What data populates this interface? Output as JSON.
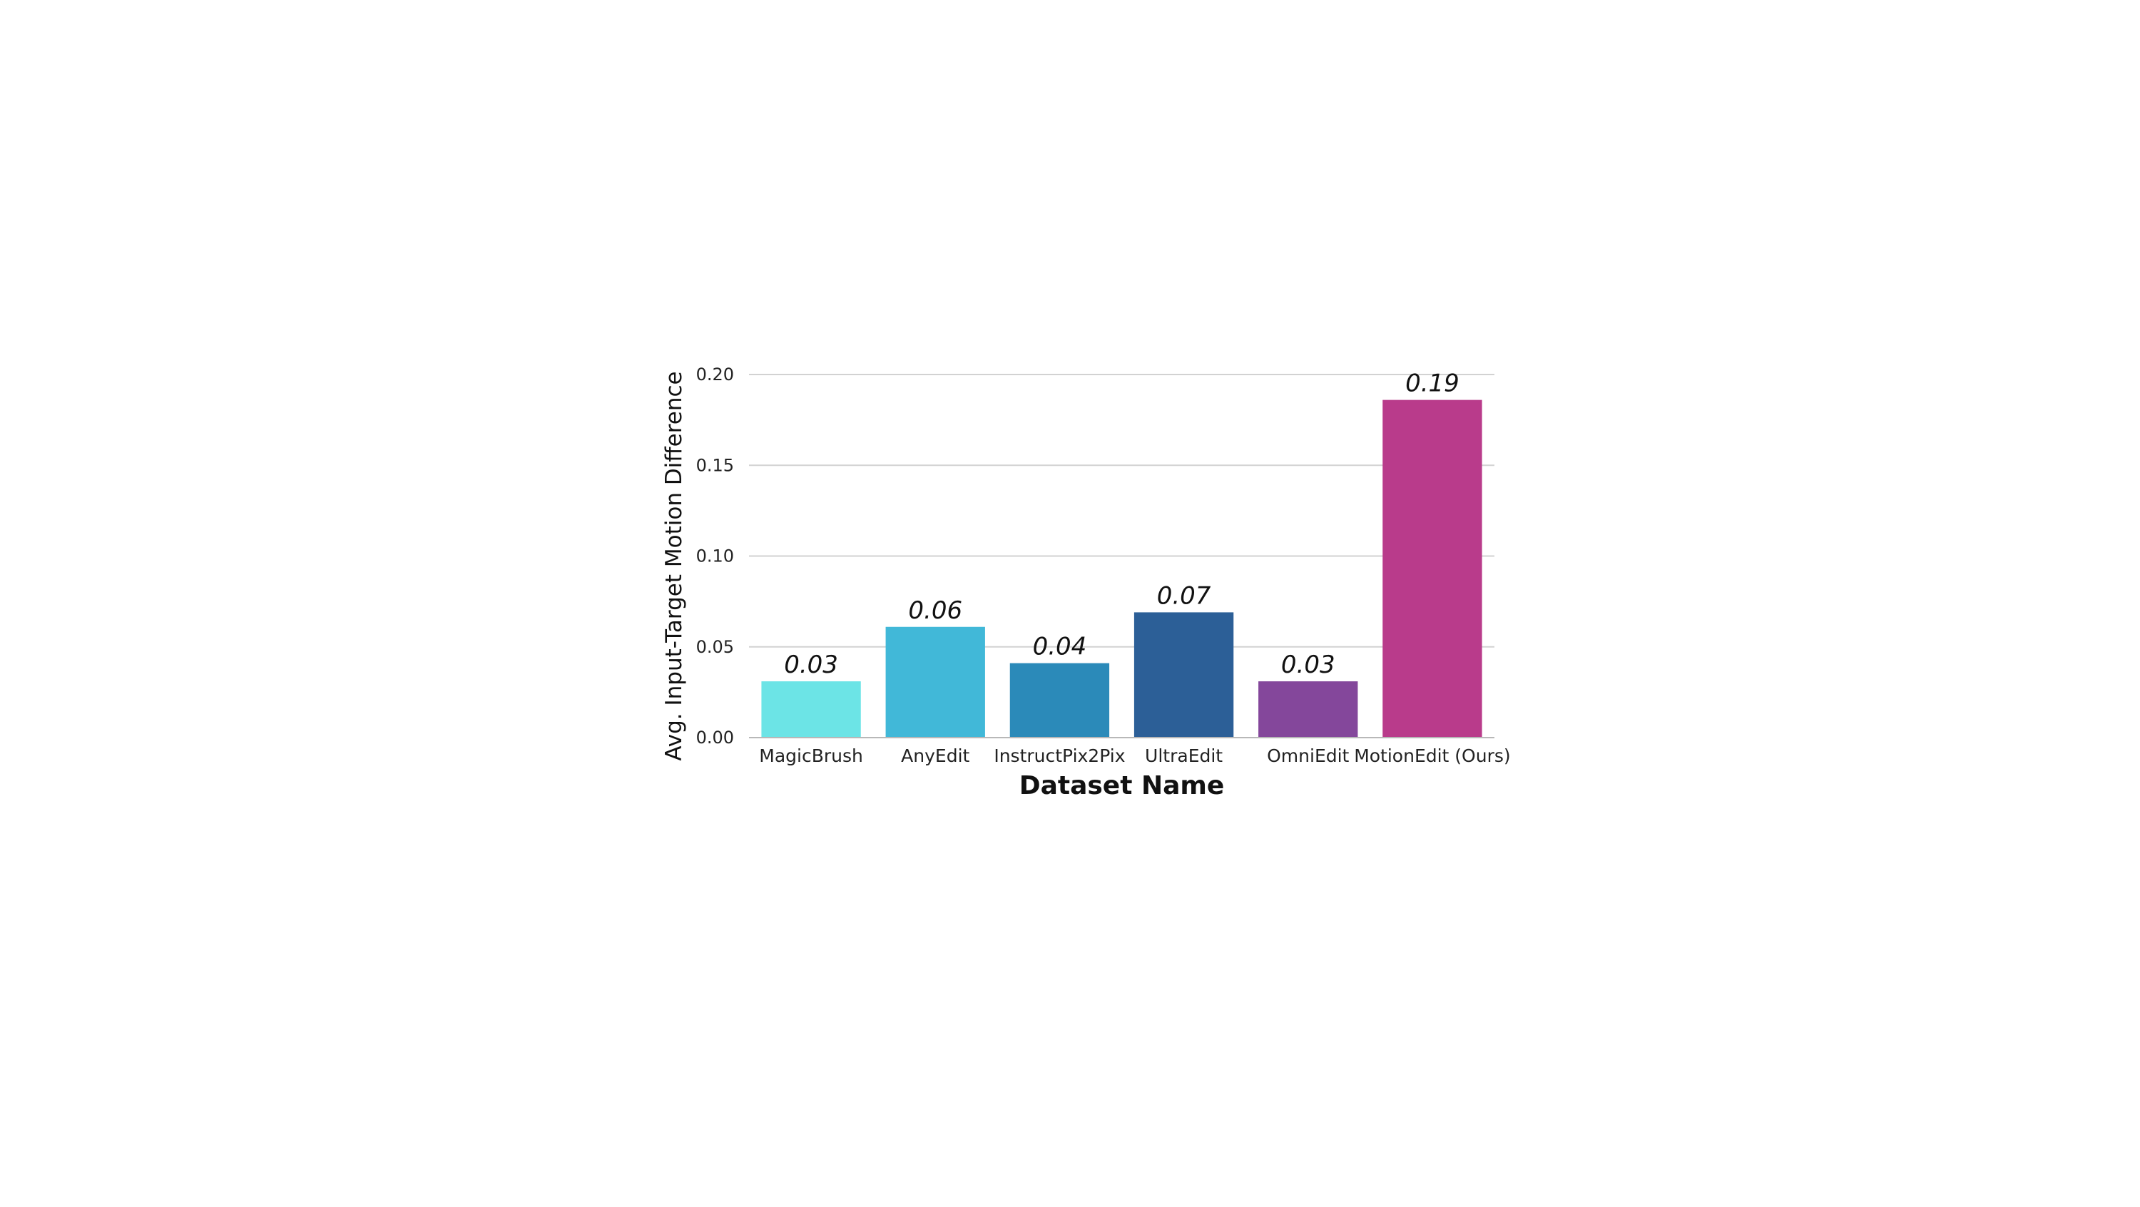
{
  "chart_data": {
    "type": "bar",
    "title": "",
    "xlabel": "Dataset Name",
    "ylabel": "Avg. Input-Target Motion Difference",
    "ylim": [
      0,
      0.2
    ],
    "yticks": [
      "0.00",
      "0.05",
      "0.10",
      "0.15",
      "0.20"
    ],
    "ytick_values": [
      0,
      0.05,
      0.1,
      0.15,
      0.2
    ],
    "grid": true,
    "legend": "none",
    "categories": [
      "MagicBrush",
      "AnyEdit",
      "InstructPix2Pix",
      "UltraEdit",
      "OmniEdit",
      "MotionEdit (Ours)"
    ],
    "values": [
      0.031,
      0.061,
      0.041,
      0.069,
      0.031,
      0.186
    ],
    "value_labels": [
      "0.03",
      "0.06",
      "0.04",
      "0.07",
      "0.03",
      "0.19"
    ],
    "colors": [
      "#6ce4e6",
      "#41b8d8",
      "#2b8ab9",
      "#2c5f97",
      "#84479b",
      "#b93b8b"
    ]
  }
}
